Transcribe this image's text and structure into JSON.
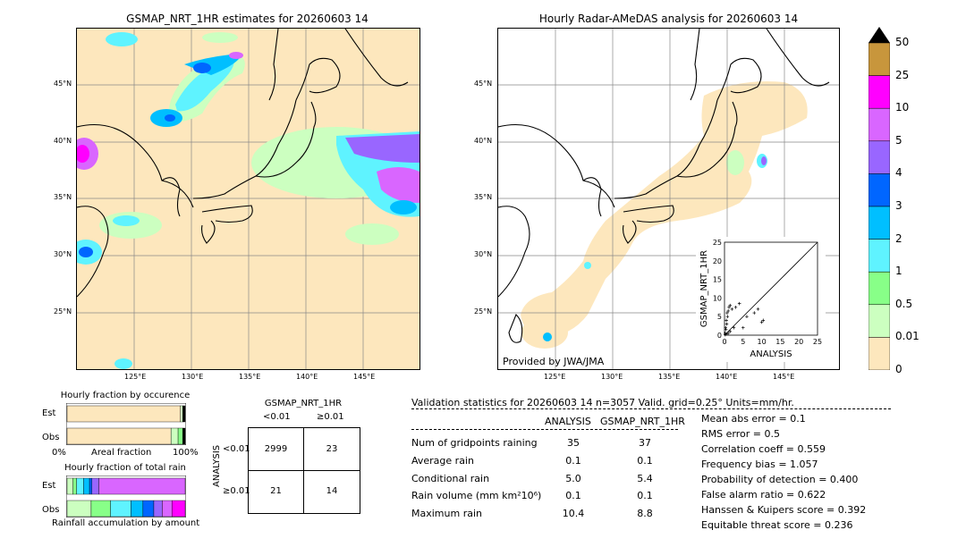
{
  "left_map": {
    "title": "GSMAP_NRT_1HR estimates for 20260603 14",
    "lon_ticks": [
      "125°E",
      "130°E",
      "135°E",
      "140°E",
      "145°E"
    ],
    "lat_ticks": [
      "45°N",
      "40°N",
      "35°N",
      "30°N",
      "25°N"
    ]
  },
  "right_map": {
    "title": "Hourly Radar-AMeDAS analysis for 20260603 14",
    "lon_ticks": [
      "125°E",
      "130°E",
      "135°E",
      "140°E",
      "145°E"
    ],
    "lat_ticks": [
      "45°N",
      "40°N",
      "35°N",
      "30°N",
      "25°N"
    ],
    "credit": "Provided by JWA/JMA"
  },
  "colorbar": {
    "labels": [
      "50",
      "25",
      "10",
      "5",
      "4",
      "3",
      "2",
      "1",
      "0.5",
      "0.01",
      "0"
    ],
    "colors": [
      "#c8963c",
      "#ff00ff",
      "#d966ff",
      "#9966ff",
      "#0066ff",
      "#00bfff",
      "#5ff3ff",
      "#88ff88",
      "#ccffc0",
      "#fde7bd"
    ]
  },
  "chart_data": [
    {
      "type": "scatter",
      "xlabel": "ANALYSIS",
      "ylabel": "GSMAP_NRT_1HR",
      "xlim": [
        0,
        25
      ],
      "ylim": [
        0,
        25
      ],
      "x_ticks": [
        "0",
        "5",
        "10",
        "15",
        "20",
        "25"
      ],
      "y_ticks": [
        "0",
        "5",
        "10",
        "15",
        "20",
        "25"
      ],
      "points": [
        [
          0.2,
          0.5
        ],
        [
          0.4,
          1.5
        ],
        [
          0.6,
          3
        ],
        [
          0.8,
          5
        ],
        [
          1,
          6.5
        ],
        [
          1.2,
          7.5
        ],
        [
          1.5,
          8
        ],
        [
          0.3,
          2
        ],
        [
          0.5,
          4
        ],
        [
          0.7,
          6
        ],
        [
          2,
          7
        ],
        [
          3,
          7.5
        ],
        [
          4,
          8.5
        ],
        [
          5,
          2
        ],
        [
          6,
          5
        ],
        [
          8,
          6
        ],
        [
          9,
          7
        ],
        [
          10.4,
          4
        ],
        [
          10,
          3.5
        ],
        [
          1.5,
          1
        ],
        [
          2.5,
          2
        ],
        [
          0.2,
          0.1
        ],
        [
          0.5,
          0.3
        ],
        [
          1,
          0.5
        ]
      ]
    },
    {
      "type": "bar",
      "title": "Hourly fraction by occurence",
      "categories": [
        "Est",
        "Obs"
      ],
      "x_ticks": [
        "0%",
        "100%"
      ],
      "xlabel": "Areal fraction",
      "series": [
        {
          "category": "Est",
          "segments": [
            {
              "color": "#fde7bd",
              "value": 0.96
            },
            {
              "color": "#ccffc0",
              "value": 0.02
            },
            {
              "color": "#000000",
              "value": 0.02
            }
          ]
        },
        {
          "category": "Obs",
          "segments": [
            {
              "color": "#fde7bd",
              "value": 0.88
            },
            {
              "color": "#ccffc0",
              "value": 0.06
            },
            {
              "color": "#88ff88",
              "value": 0.04
            },
            {
              "color": "#000000",
              "value": 0.02
            }
          ]
        }
      ]
    },
    {
      "type": "bar",
      "title": "Hourly fraction of total rain",
      "categories": [
        "Est",
        "Obs"
      ],
      "xlabel": "Rainfall accumulation by amount",
      "series": [
        {
          "category": "Est",
          "segments": [
            {
              "color": "#ccffc0",
              "value": 0.05
            },
            {
              "color": "#88ff88",
              "value": 0.03
            },
            {
              "color": "#5ff3ff",
              "value": 0.06
            },
            {
              "color": "#00bfff",
              "value": 0.05
            },
            {
              "color": "#0066ff",
              "value": 0.02
            },
            {
              "color": "#9966ff",
              "value": 0.06
            },
            {
              "color": "#d966ff",
              "value": 0.73
            }
          ]
        },
        {
          "category": "Obs",
          "segments": [
            {
              "color": "#ccffc0",
              "value": 0.2
            },
            {
              "color": "#88ff88",
              "value": 0.16
            },
            {
              "color": "#5ff3ff",
              "value": 0.17
            },
            {
              "color": "#00bfff",
              "value": 0.1
            },
            {
              "color": "#0066ff",
              "value": 0.09
            },
            {
              "color": "#9966ff",
              "value": 0.07
            },
            {
              "color": "#d966ff",
              "value": 0.08
            },
            {
              "color": "#ff00ff",
              "value": 0.11
            }
          ]
        }
      ]
    }
  ],
  "contingency": {
    "title": "GSMAP_NRT_1HR",
    "col_lt": "<0.01",
    "col_ge": "≥0.01",
    "row_label": "ANALYSIS",
    "row_lt": "<0.01",
    "row_ge": "≥0.01",
    "cells": [
      "2999",
      "23",
      "21",
      "14"
    ]
  },
  "validation": {
    "header": "Validation statistics for 20260603 14  n=3057 Valid. grid=0.25° Units=mm/hr.",
    "col_analysis": "ANALYSIS",
    "col_gsmap": "GSMAP_NRT_1HR",
    "rows": [
      {
        "label": "Num of gridpoints raining",
        "analysis": "35",
        "gsmap": "37"
      },
      {
        "label": "Average rain",
        "analysis": "0.1",
        "gsmap": "0.1"
      },
      {
        "label": "Conditional rain",
        "analysis": "5.0",
        "gsmap": "5.4"
      },
      {
        "label": "Rain volume (mm km²10⁶)",
        "analysis": "0.1",
        "gsmap": "0.1"
      },
      {
        "label": "Maximum rain",
        "analysis": "10.4",
        "gsmap": "8.8"
      }
    ],
    "scores": [
      "Mean abs error =    0.1",
      "RMS error =    0.5",
      "Correlation coeff =  0.559",
      "Frequency bias =  1.057",
      "Probability of detection =  0.400",
      "False alarm ratio =  0.622",
      "Hanssen & Kuipers score =  0.392",
      "Equitable threat score =  0.236"
    ]
  }
}
